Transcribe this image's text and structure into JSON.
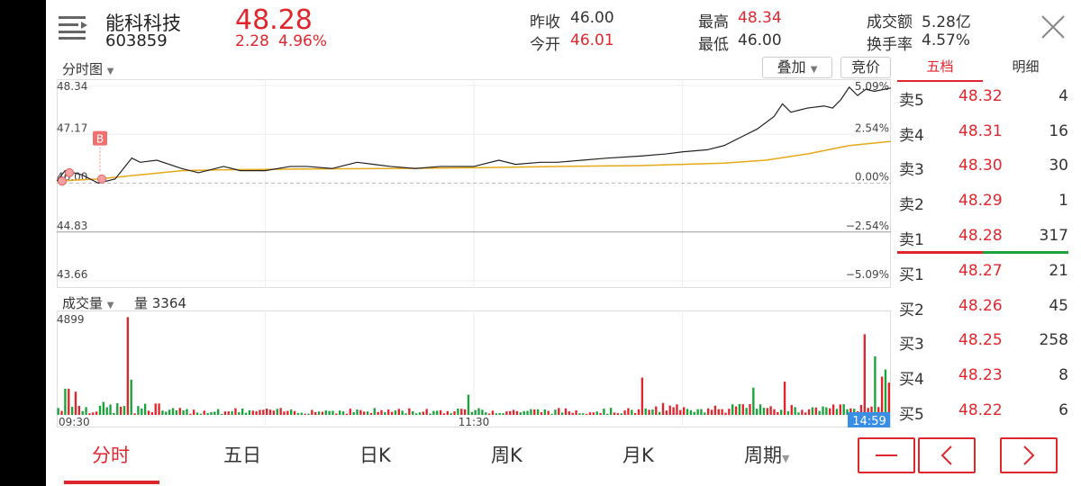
{
  "stock": {
    "name": "能科科技",
    "code": "603859",
    "price": "48.28",
    "change": "2.28",
    "change_pct": "4.96%"
  },
  "quote": {
    "prev_close_label": "昨收",
    "prev_close": "46.00",
    "open_label": "今开",
    "open": "46.01",
    "high_label": "最高",
    "high": "48.34",
    "low_label": "最低",
    "low": "46.00",
    "amount_label": "成交额",
    "amount": "5.28亿",
    "turnover_label": "换手率",
    "turnover": "4.57%"
  },
  "chart_header": {
    "mode": "分时图",
    "overlay": "叠加",
    "auction": "竞价"
  },
  "orderbook_tabs": {
    "active": "五档",
    "other": "明细"
  },
  "price_axis": {
    "left": [
      "48.34",
      "47.17",
      "46.00",
      "44.83",
      "43.66"
    ],
    "right": [
      "5.09%",
      "2.54%",
      "0.00%",
      "−2.54%",
      "−5.09%"
    ]
  },
  "volume_header": {
    "label": "成交量",
    "value_text": "量 3364",
    "max": "4899"
  },
  "time_labels": {
    "start": "09:30",
    "mid": "11:30",
    "cursor": "14:59"
  },
  "marker": {
    "label": "B"
  },
  "sells": [
    {
      "label": "卖5",
      "price": "48.32",
      "vol": "4"
    },
    {
      "label": "卖4",
      "price": "48.31",
      "vol": "16"
    },
    {
      "label": "卖3",
      "price": "48.30",
      "vol": "30"
    },
    {
      "label": "卖2",
      "price": "48.29",
      "vol": "1"
    },
    {
      "label": "卖1",
      "price": "48.28",
      "vol": "317"
    }
  ],
  "buys": [
    {
      "label": "买1",
      "price": "48.27",
      "vol": "21"
    },
    {
      "label": "买2",
      "price": "48.26",
      "vol": "45"
    },
    {
      "label": "买3",
      "price": "48.25",
      "vol": "258"
    },
    {
      "label": "买4",
      "price": "48.23",
      "vol": "8"
    },
    {
      "label": "买5",
      "price": "48.22",
      "vol": "6"
    }
  ],
  "bottom_tabs": [
    "分时",
    "五日",
    "日K",
    "周K",
    "月K",
    "周期"
  ],
  "colors": {
    "up": "#e0262d",
    "down": "#1aa33a",
    "avg_line": "#e6a817",
    "price_line": "#222222"
  },
  "chart_data": {
    "type": "line",
    "x_range": [
      "09:30",
      "15:00"
    ],
    "ylim": [
      43.66,
      48.34
    ],
    "series": [],
    "price_x": [
      0,
      0.01,
      0.02,
      0.03,
      0.05,
      0.07,
      0.09,
      0.1,
      0.12,
      0.15,
      0.17,
      0.19,
      0.2,
      0.22,
      0.25,
      0.28,
      0.3,
      0.33,
      0.36,
      0.38,
      0.4,
      0.43,
      0.46,
      0.5,
      0.53,
      0.55,
      0.58,
      0.6,
      0.63,
      0.66,
      0.7,
      0.73,
      0.75,
      0.78,
      0.8,
      0.82,
      0.84,
      0.86,
      0.87,
      0.88,
      0.9,
      0.92,
      0.93,
      0.94,
      0.95,
      0.96,
      0.97,
      0.98,
      1.0
    ],
    "price_y": [
      46.05,
      46.3,
      46.25,
      46.2,
      46.0,
      46.1,
      46.6,
      46.5,
      46.55,
      46.35,
      46.25,
      46.35,
      46.4,
      46.3,
      46.3,
      46.4,
      46.4,
      46.35,
      46.5,
      46.45,
      46.4,
      46.35,
      46.4,
      46.4,
      46.55,
      46.45,
      46.5,
      46.5,
      46.55,
      46.6,
      46.65,
      46.7,
      46.75,
      46.8,
      46.9,
      47.1,
      47.3,
      47.6,
      47.9,
      47.7,
      47.8,
      47.85,
      47.8,
      48.0,
      48.3,
      48.1,
      48.25,
      48.2,
      48.28
    ],
    "avg_x": [
      0,
      0.05,
      0.1,
      0.15,
      0.2,
      0.3,
      0.4,
      0.5,
      0.6,
      0.7,
      0.8,
      0.85,
      0.9,
      0.95,
      1.0
    ],
    "avg_y": [
      46.05,
      46.1,
      46.2,
      46.3,
      46.32,
      46.34,
      46.35,
      46.37,
      46.4,
      46.42,
      46.48,
      46.55,
      46.7,
      46.9,
      47.0
    ],
    "volume_max": 4899
  }
}
